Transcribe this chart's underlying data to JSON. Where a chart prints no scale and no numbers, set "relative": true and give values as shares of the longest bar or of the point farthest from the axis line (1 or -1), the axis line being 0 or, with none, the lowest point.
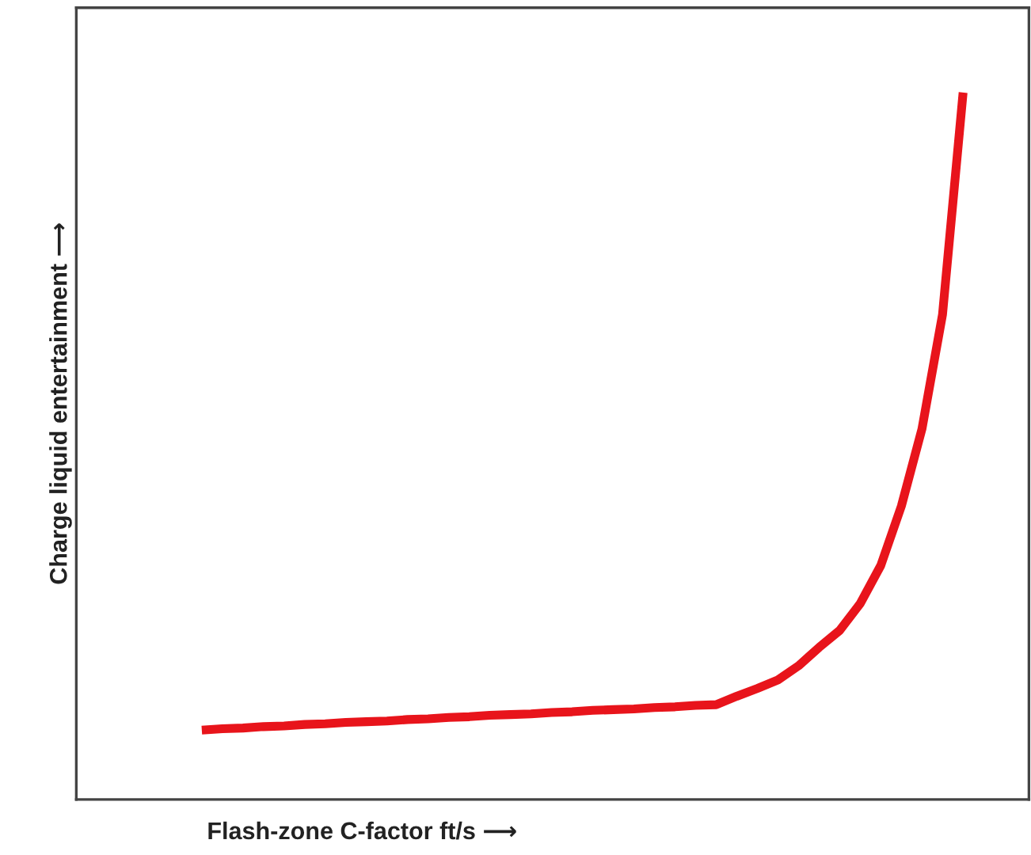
{
  "chart_data": {
    "type": "line",
    "relative": true,
    "xlabel": "Flash-zone C-factor ft/s ⟶",
    "ylabel": "Charge liquid entertainment ⟶",
    "categories": [
      null,
      null,
      null,
      null,
      null,
      null,
      null,
      null,
      null,
      null,
      null,
      null,
      null,
      null,
      null,
      null,
      null,
      null,
      null,
      null,
      null,
      null,
      null,
      null,
      null,
      null,
      null,
      null,
      null,
      null,
      null,
      null,
      null,
      null,
      null,
      null,
      null,
      null
    ],
    "series": [
      {
        "color": "#e8141b",
        "values": [
          0.098,
          0.1,
          0.101,
          0.103,
          0.104,
          0.106,
          0.107,
          0.109,
          0.11,
          0.111,
          0.113,
          0.114,
          0.116,
          0.117,
          0.119,
          0.12,
          0.121,
          0.123,
          0.124,
          0.126,
          0.127,
          0.128,
          0.13,
          0.131,
          0.133,
          0.134,
          0.146,
          0.157,
          0.169,
          0.189,
          0.215,
          0.239,
          0.277,
          0.331,
          0.415,
          0.524,
          0.686,
          1.0
        ]
      }
    ],
    "marker": "none",
    "line_style": "solid"
  }
}
